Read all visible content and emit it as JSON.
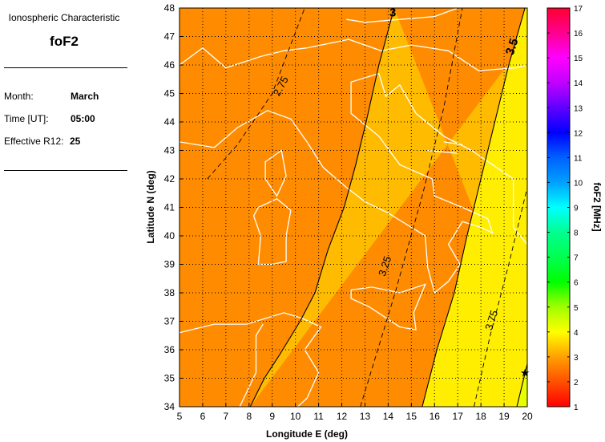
{
  "panel": {
    "heading": "Ionospheric Characteristic",
    "characteristic": "foF2",
    "month_label": "Month:",
    "month_value": "March",
    "time_label": "Time [UT]:",
    "time_value": "05:00",
    "r12_label": "Effective R12:",
    "r12_value": "25"
  },
  "chart_data": {
    "type": "contour-map",
    "xlabel": "Longitude E (deg)",
    "ylabel": "Latitude N (deg)",
    "xlim": [
      5,
      20
    ],
    "ylim": [
      34,
      48
    ],
    "xticks": [
      "5",
      "6",
      "7",
      "8",
      "9",
      "10",
      "11",
      "12",
      "13",
      "14",
      "15",
      "16",
      "17",
      "18",
      "19",
      "20"
    ],
    "yticks": [
      "34",
      "35",
      "36",
      "37",
      "38",
      "39",
      "40",
      "41",
      "42",
      "43",
      "44",
      "45",
      "46",
      "47",
      "48"
    ],
    "grid": true,
    "contours": [
      {
        "level": "2.75",
        "style": "dashed",
        "points": [
          [
            6.2,
            42.0
          ],
          [
            7.5,
            43.2
          ],
          [
            9.0,
            45.0
          ],
          [
            10.4,
            48.0
          ]
        ]
      },
      {
        "level": "3",
        "style": "solid",
        "points": [
          [
            8.05,
            34
          ],
          [
            8.66,
            35
          ],
          [
            9.3,
            35.8
          ],
          [
            10.2,
            37
          ],
          [
            10.84,
            38
          ],
          [
            11.4,
            39.5
          ],
          [
            12.1,
            41
          ],
          [
            12.6,
            42.5
          ],
          [
            13.05,
            44
          ],
          [
            13.6,
            46
          ],
          [
            14.26,
            48
          ]
        ]
      },
      {
        "level": "3.25",
        "style": "dashed",
        "points": [
          [
            12.8,
            34
          ],
          [
            14.3,
            38
          ],
          [
            15.5,
            41.5
          ],
          [
            16.4,
            44.5
          ],
          [
            17.2,
            48
          ]
        ]
      },
      {
        "level": "3.5",
        "style": "solid",
        "points": [
          [
            15.47,
            34
          ],
          [
            16.1,
            36
          ],
          [
            16.85,
            38
          ],
          [
            17.4,
            40
          ],
          [
            18.0,
            42
          ],
          [
            18.6,
            44
          ],
          [
            19.2,
            46
          ],
          [
            19.9,
            48
          ]
        ]
      },
      {
        "level": "3.75",
        "style": "dashed",
        "points": [
          [
            17.7,
            34
          ],
          [
            18.4,
            36.5
          ],
          [
            19.2,
            39
          ],
          [
            20.0,
            41.7
          ]
        ]
      },
      {
        "level": "4",
        "style": "solid",
        "points": [
          [
            19.55,
            34
          ],
          [
            20.0,
            35.5
          ]
        ]
      }
    ],
    "band_colors": [
      "#ff8c00",
      "#ffbb00",
      "#ffee00",
      "#e8ff00"
    ],
    "marker": {
      "symbol": "star",
      "lon": 19.9,
      "lat": 35.2
    },
    "colorbar": {
      "label": "foF2 [MHz]",
      "range": [
        1,
        17
      ],
      "ticks": [
        "1",
        "2",
        "3",
        "4",
        "5",
        "6",
        "7",
        "8",
        "9",
        "10",
        "11",
        "12",
        "13",
        "14",
        "15",
        "16",
        "17"
      ],
      "colors": [
        "#ff0000",
        "#ff5000",
        "#ffa000",
        "#ffff00",
        "#a0ff00",
        "#00ff00",
        "#00ff50",
        "#00ff90",
        "#00ffff",
        "#00a0ff",
        "#0060ff",
        "#0000ff",
        "#6000ff",
        "#c000ff",
        "#ff00ff",
        "#ff0090",
        "#ff0030"
      ]
    }
  }
}
